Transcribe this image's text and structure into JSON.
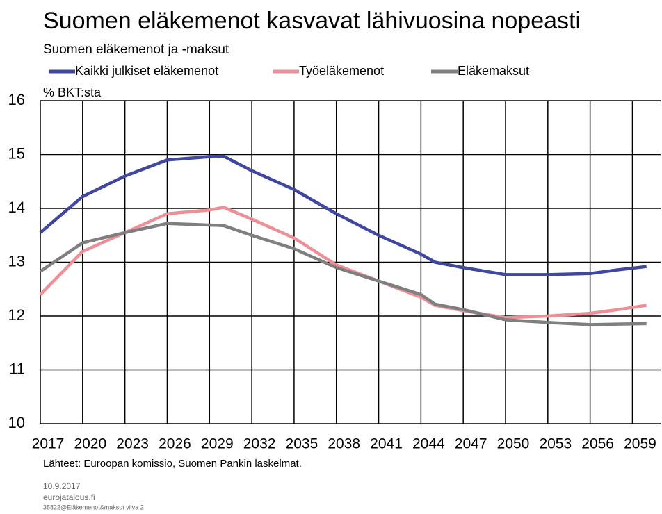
{
  "chart_data": {
    "type": "line",
    "title": "Suomen eläkemenot kasvavat lähivuosina nopeasti",
    "subtitle": "Suomen eläkemenot ja -maksut",
    "y_label": "% BKT:sta",
    "source": "Lähteet: Euroopan komissio, Suomen Pankin laskelmat.",
    "footer": [
      "10.9.2017",
      "eurojatalous.fi",
      "35822@Eläkemenot&maksut viiva 2"
    ],
    "x": [
      2017,
      2020,
      2023,
      2026,
      2029,
      2030,
      2032,
      2035,
      2038,
      2041,
      2044,
      2045,
      2047,
      2050,
      2053,
      2056,
      2058,
      2060
    ],
    "series": [
      {
        "name": "Kaikki julkiset eläkemenot",
        "color": "#3f47a0",
        "values": [
          13.55,
          14.22,
          14.6,
          14.9,
          14.96,
          14.97,
          14.7,
          14.35,
          13.9,
          13.5,
          13.15,
          13.0,
          12.9,
          12.77,
          12.77,
          12.79,
          12.86,
          12.92
        ]
      },
      {
        "name": "Työeläkemenot",
        "color": "#ee8f98",
        "values": [
          12.4,
          13.2,
          13.55,
          13.9,
          13.97,
          14.02,
          13.8,
          13.45,
          12.95,
          12.65,
          12.35,
          12.2,
          12.1,
          11.97,
          12.0,
          12.05,
          12.12,
          12.2
        ]
      },
      {
        "name": "Eläkemaksut",
        "color": "#7f7f7f",
        "values": [
          12.83,
          13.36,
          13.55,
          13.72,
          13.69,
          13.68,
          13.5,
          13.25,
          12.9,
          12.65,
          12.4,
          12.22,
          12.12,
          11.93,
          11.88,
          11.84,
          11.85,
          11.86
        ]
      }
    ],
    "xlim": [
      2017,
      2061
    ],
    "xticks": [
      2017,
      2020,
      2023,
      2026,
      2029,
      2032,
      2035,
      2038,
      2041,
      2044,
      2047,
      2050,
      2053,
      2056,
      2059
    ],
    "ylim": [
      10,
      16
    ],
    "yticks": [
      10,
      11,
      12,
      13,
      14,
      15,
      16
    ],
    "grid": true
  }
}
